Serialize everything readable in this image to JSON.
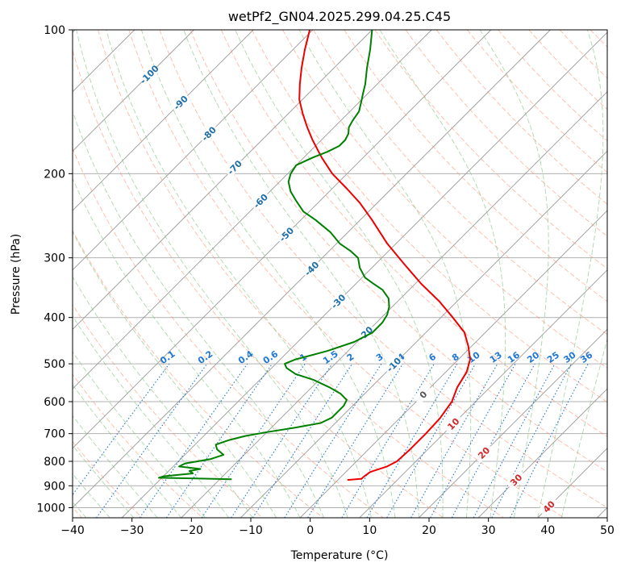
{
  "chart_data": {
    "type": "line",
    "title": "wetPf2_GN04.2025.299.04.25.C45",
    "xlabel": "Temperature (°C)",
    "ylabel": "Pressure (hPa)",
    "xlim": [
      -40,
      50
    ],
    "ylim": [
      1050,
      100
    ],
    "y_scale": "log",
    "grid": true,
    "x_ticks": [
      -40,
      -30,
      -20,
      -10,
      0,
      10,
      20,
      30,
      40,
      50
    ],
    "y_ticks": [
      100,
      200,
      300,
      400,
      500,
      600,
      700,
      800,
      900,
      1000
    ],
    "colors": {
      "temperature": "#ee0000",
      "dewpoint": "#008000",
      "isotherm": "#9a9a9a",
      "dry_adiabat": "#ff8c69",
      "moist_adiabat": "#88c888",
      "mixing_ratio": "#1f77d4",
      "iso_label_cold": "#1f6fa8",
      "iso_label_warm": "#d62728"
    },
    "series": [
      {
        "key": "temperature",
        "p": [
          875,
          870,
          862,
          842,
          820,
          800,
          760,
          700,
          650,
          600,
          560,
          520,
          490,
          460,
          430,
          400,
          370,
          340,
          310,
          280,
          250,
          230,
          215,
          200,
          185,
          170,
          160,
          150,
          140,
          130,
          120,
          110,
          100
        ],
        "t": [
          1.6,
          3.8,
          3.8,
          4.1,
          6.0,
          6.8,
          7.0,
          7.0,
          6.8,
          6.0,
          4.5,
          3.5,
          2.0,
          -0.5,
          -3.5,
          -8.0,
          -13.0,
          -19.0,
          -25.0,
          -31.5,
          -38.0,
          -43.0,
          -47.5,
          -52.5,
          -57.0,
          -61.5,
          -64.5,
          -67.5,
          -70.5,
          -73.0,
          -75.5,
          -78.0,
          -80.5
        ]
      },
      {
        "key": "dewpoint",
        "p": [
          872,
          866,
          860,
          848,
          838,
          830,
          820,
          808,
          792,
          775,
          755,
          738,
          722,
          708,
          695,
          680,
          665,
          648,
          630,
          612,
          595,
          578,
          560,
          540,
          525,
          510,
          500,
          490,
          470,
          450,
          430,
          410,
          395,
          380,
          365,
          350,
          340,
          330,
          315,
          300,
          290,
          280,
          265,
          250,
          240,
          228,
          218,
          208,
          200,
          192,
          185,
          180,
          175,
          170,
          165,
          160,
          155,
          148,
          140,
          135,
          130,
          120,
          110,
          100
        ],
        "t": [
          -18.0,
          -30.5,
          -30.0,
          -25.5,
          -26.5,
          -25.0,
          -29.0,
          -28.5,
          -25.0,
          -23.5,
          -25.5,
          -26.5,
          -25.0,
          -23.0,
          -20.0,
          -16.0,
          -12.5,
          -11.5,
          -11.5,
          -11.5,
          -12.0,
          -14.0,
          -17.0,
          -21.0,
          -25.0,
          -27.5,
          -28.5,
          -27.5,
          -23.5,
          -20.5,
          -19.0,
          -19.0,
          -19.5,
          -20.5,
          -22.0,
          -24.5,
          -27.0,
          -29.5,
          -32.0,
          -34.0,
          -36.5,
          -39.5,
          -43.0,
          -47.5,
          -51.0,
          -54.0,
          -56.5,
          -58.5,
          -59.5,
          -60.0,
          -58.5,
          -57.0,
          -56.0,
          -56.0,
          -56.5,
          -57.5,
          -58.0,
          -58.5,
          -60.0,
          -61.0,
          -62.0,
          -64.5,
          -67.0,
          -70.0
        ]
      }
    ],
    "mixing_ratio_labels": [
      "0.1",
      "0.2",
      "0.4",
      "0.6",
      "1",
      "1.5",
      "2",
      "3",
      "4",
      "6",
      "8",
      "10",
      "13",
      "16",
      "20",
      "25",
      "30",
      "36"
    ],
    "mixing_ratio_values": [
      0.1,
      0.2,
      0.4,
      0.6,
      1,
      1.5,
      2,
      3,
      4,
      6,
      8,
      10,
      13,
      16,
      20,
      25,
      30,
      36
    ],
    "isotherm_labels": [
      {
        "t": -100,
        "p": 124,
        "text": "-100"
      },
      {
        "t": -90,
        "p": 142,
        "text": "-90"
      },
      {
        "t": -80,
        "p": 165,
        "text": "-80"
      },
      {
        "t": -70,
        "p": 194,
        "text": "-70"
      },
      {
        "t": -60,
        "p": 228,
        "text": "-60"
      },
      {
        "t": -50,
        "p": 268,
        "text": "-50"
      },
      {
        "t": -40,
        "p": 316,
        "text": "-40"
      },
      {
        "t": -30,
        "p": 370,
        "text": "-30"
      },
      {
        "t": -20,
        "p": 432,
        "text": "-20"
      },
      {
        "t": -10,
        "p": 502,
        "text": "-10"
      },
      {
        "t": 0,
        "p": 580,
        "text": "0"
      },
      {
        "t": 10,
        "p": 668,
        "text": "10"
      },
      {
        "t": 20,
        "p": 768,
        "text": "20"
      },
      {
        "t": 30,
        "p": 875,
        "text": "30"
      },
      {
        "t": 40,
        "p": 995,
        "text": "40"
      }
    ]
  }
}
